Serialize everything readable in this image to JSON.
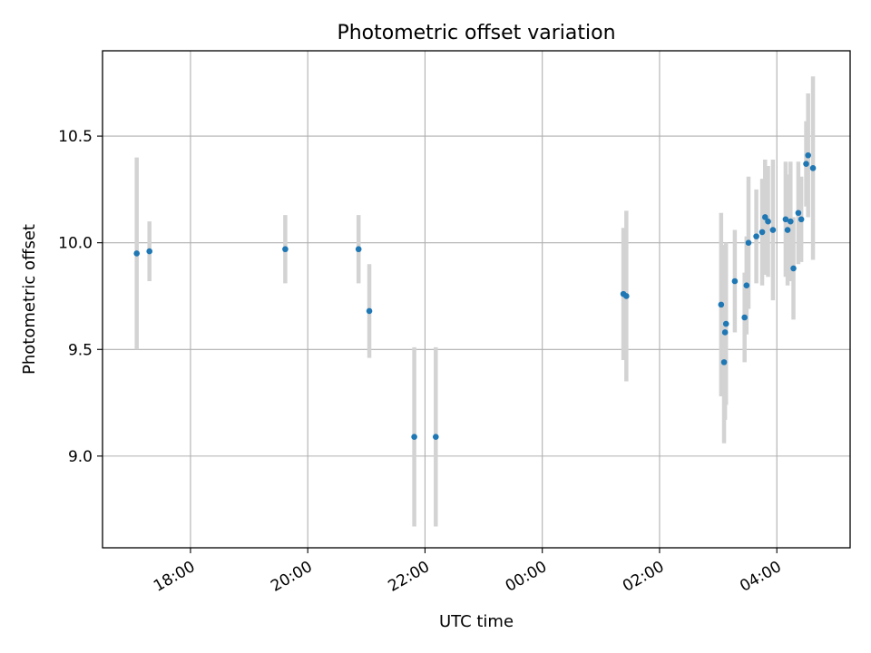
{
  "chart_data": {
    "type": "scatter",
    "title": "Photometric offset variation",
    "xlabel": "UTC time",
    "ylabel": "Photometric offset",
    "x_axis_kind": "time",
    "xlim": [
      "16:30",
      "29:15"
    ],
    "ylim": [
      8.57,
      10.9
    ],
    "grid": true,
    "x_ticks": [
      {
        "value": "18:00",
        "label": "18:00"
      },
      {
        "value": "20:00",
        "label": "20:00"
      },
      {
        "value": "22:00",
        "label": "22:00"
      },
      {
        "value": "24:00",
        "label": "00:00"
      },
      {
        "value": "26:00",
        "label": "02:00"
      },
      {
        "value": "28:00",
        "label": "04:00"
      }
    ],
    "y_ticks": [
      {
        "value": 9.0,
        "label": "9.0"
      },
      {
        "value": 9.5,
        "label": "9.5"
      },
      {
        "value": 10.0,
        "label": "10.0"
      },
      {
        "value": 10.5,
        "label": "10.5"
      }
    ],
    "marker_color": "#1f77b4",
    "errorbar_color": "#d3d3d3",
    "points": [
      {
        "t": "17:05",
        "y": 9.95,
        "err": 0.45
      },
      {
        "t": "17:18",
        "y": 9.96,
        "err": 0.14
      },
      {
        "t": "19:37",
        "y": 9.97,
        "err": 0.16
      },
      {
        "t": "20:52",
        "y": 9.97,
        "err": 0.16
      },
      {
        "t": "21:03",
        "y": 9.68,
        "err": 0.22
      },
      {
        "t": "21:49",
        "y": 9.09,
        "err": 0.42
      },
      {
        "t": "22:11",
        "y": 9.09,
        "err": 0.42
      },
      {
        "t": "01:23",
        "y": 9.76,
        "err": 0.31
      },
      {
        "t": "01:26",
        "y": 9.75,
        "err": 0.4
      },
      {
        "t": "03:03",
        "y": 9.71,
        "err": 0.43
      },
      {
        "t": "03:06",
        "y": 9.44,
        "err": 0.38
      },
      {
        "t": "03:07",
        "y": 9.58,
        "err": 0.41
      },
      {
        "t": "03:08",
        "y": 9.62,
        "err": 0.38
      },
      {
        "t": "03:17",
        "y": 9.82,
        "err": 0.24
      },
      {
        "t": "03:27",
        "y": 9.65,
        "err": 0.21
      },
      {
        "t": "03:29",
        "y": 9.8,
        "err": 0.23
      },
      {
        "t": "03:31",
        "y": 10.0,
        "err": 0.31
      },
      {
        "t": "03:39",
        "y": 10.03,
        "err": 0.22
      },
      {
        "t": "03:45",
        "y": 10.05,
        "err": 0.25
      },
      {
        "t": "03:48",
        "y": 10.12,
        "err": 0.27
      },
      {
        "t": "03:51",
        "y": 10.1,
        "err": 0.26
      },
      {
        "t": "03:56",
        "y": 10.06,
        "err": 0.33
      },
      {
        "t": "04:09",
        "y": 10.11,
        "err": 0.27
      },
      {
        "t": "04:11",
        "y": 10.06,
        "err": 0.26
      },
      {
        "t": "04:14",
        "y": 10.1,
        "err": 0.28
      },
      {
        "t": "04:17",
        "y": 9.88,
        "err": 0.24
      },
      {
        "t": "04:22",
        "y": 10.14,
        "err": 0.24
      },
      {
        "t": "04:25",
        "y": 10.11,
        "err": 0.2
      },
      {
        "t": "04:30",
        "y": 10.37,
        "err": 0.2
      },
      {
        "t": "04:32",
        "y": 10.41,
        "err": 0.29
      },
      {
        "t": "04:37",
        "y": 10.35,
        "err": 0.43
      }
    ]
  }
}
